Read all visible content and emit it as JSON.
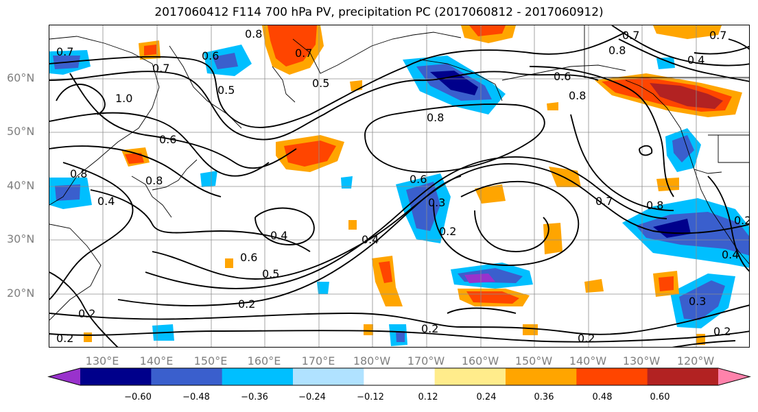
{
  "title": "2017060412 F114 700 hPa PV, precipitation PC (2017060812 - 2017060912)",
  "lat_labels": [
    "60°N",
    "50°N",
    "40°N",
    "30°N",
    "20°N"
  ],
  "lon_labels": [
    "130°E",
    "140°E",
    "150°E",
    "160°E",
    "170°E",
    "180°W",
    "170°W",
    "160°W",
    "150°W",
    "140°W",
    "130°W",
    "120°W"
  ],
  "contour_labels": [
    "0.8",
    "0.7",
    "0.6",
    "0.5",
    "0.7",
    "0.5",
    "0.6",
    "0.8",
    "0.7",
    "0.8",
    "0.4",
    "0.7",
    "0.8",
    "1.0",
    "0.7",
    "0.6",
    "0.8",
    "0.8",
    "0.4",
    "0.6",
    "0.3",
    "0.2",
    "0.7",
    "0.8",
    "0.2",
    "0.4",
    "0.6",
    "0.5",
    "0.4",
    "0.2",
    "0.2",
    "0.2",
    "0.2",
    "0.3",
    "0.2",
    "0.4",
    "0.2"
  ],
  "colorbar": {
    "colors": [
      "#9932cc",
      "#00008b",
      "#3a5fcd",
      "#00bfff",
      "#b0e2ff",
      "#ffffff",
      "#ffec8b",
      "#ffa500",
      "#ff4500",
      "#b22222",
      "#ff82ab"
    ],
    "ticks": [
      "−0.60",
      "−0.48",
      "−0.36",
      "−0.24",
      "−0.12",
      "0.12",
      "0.24",
      "0.36",
      "0.48",
      "0.60"
    ]
  }
}
